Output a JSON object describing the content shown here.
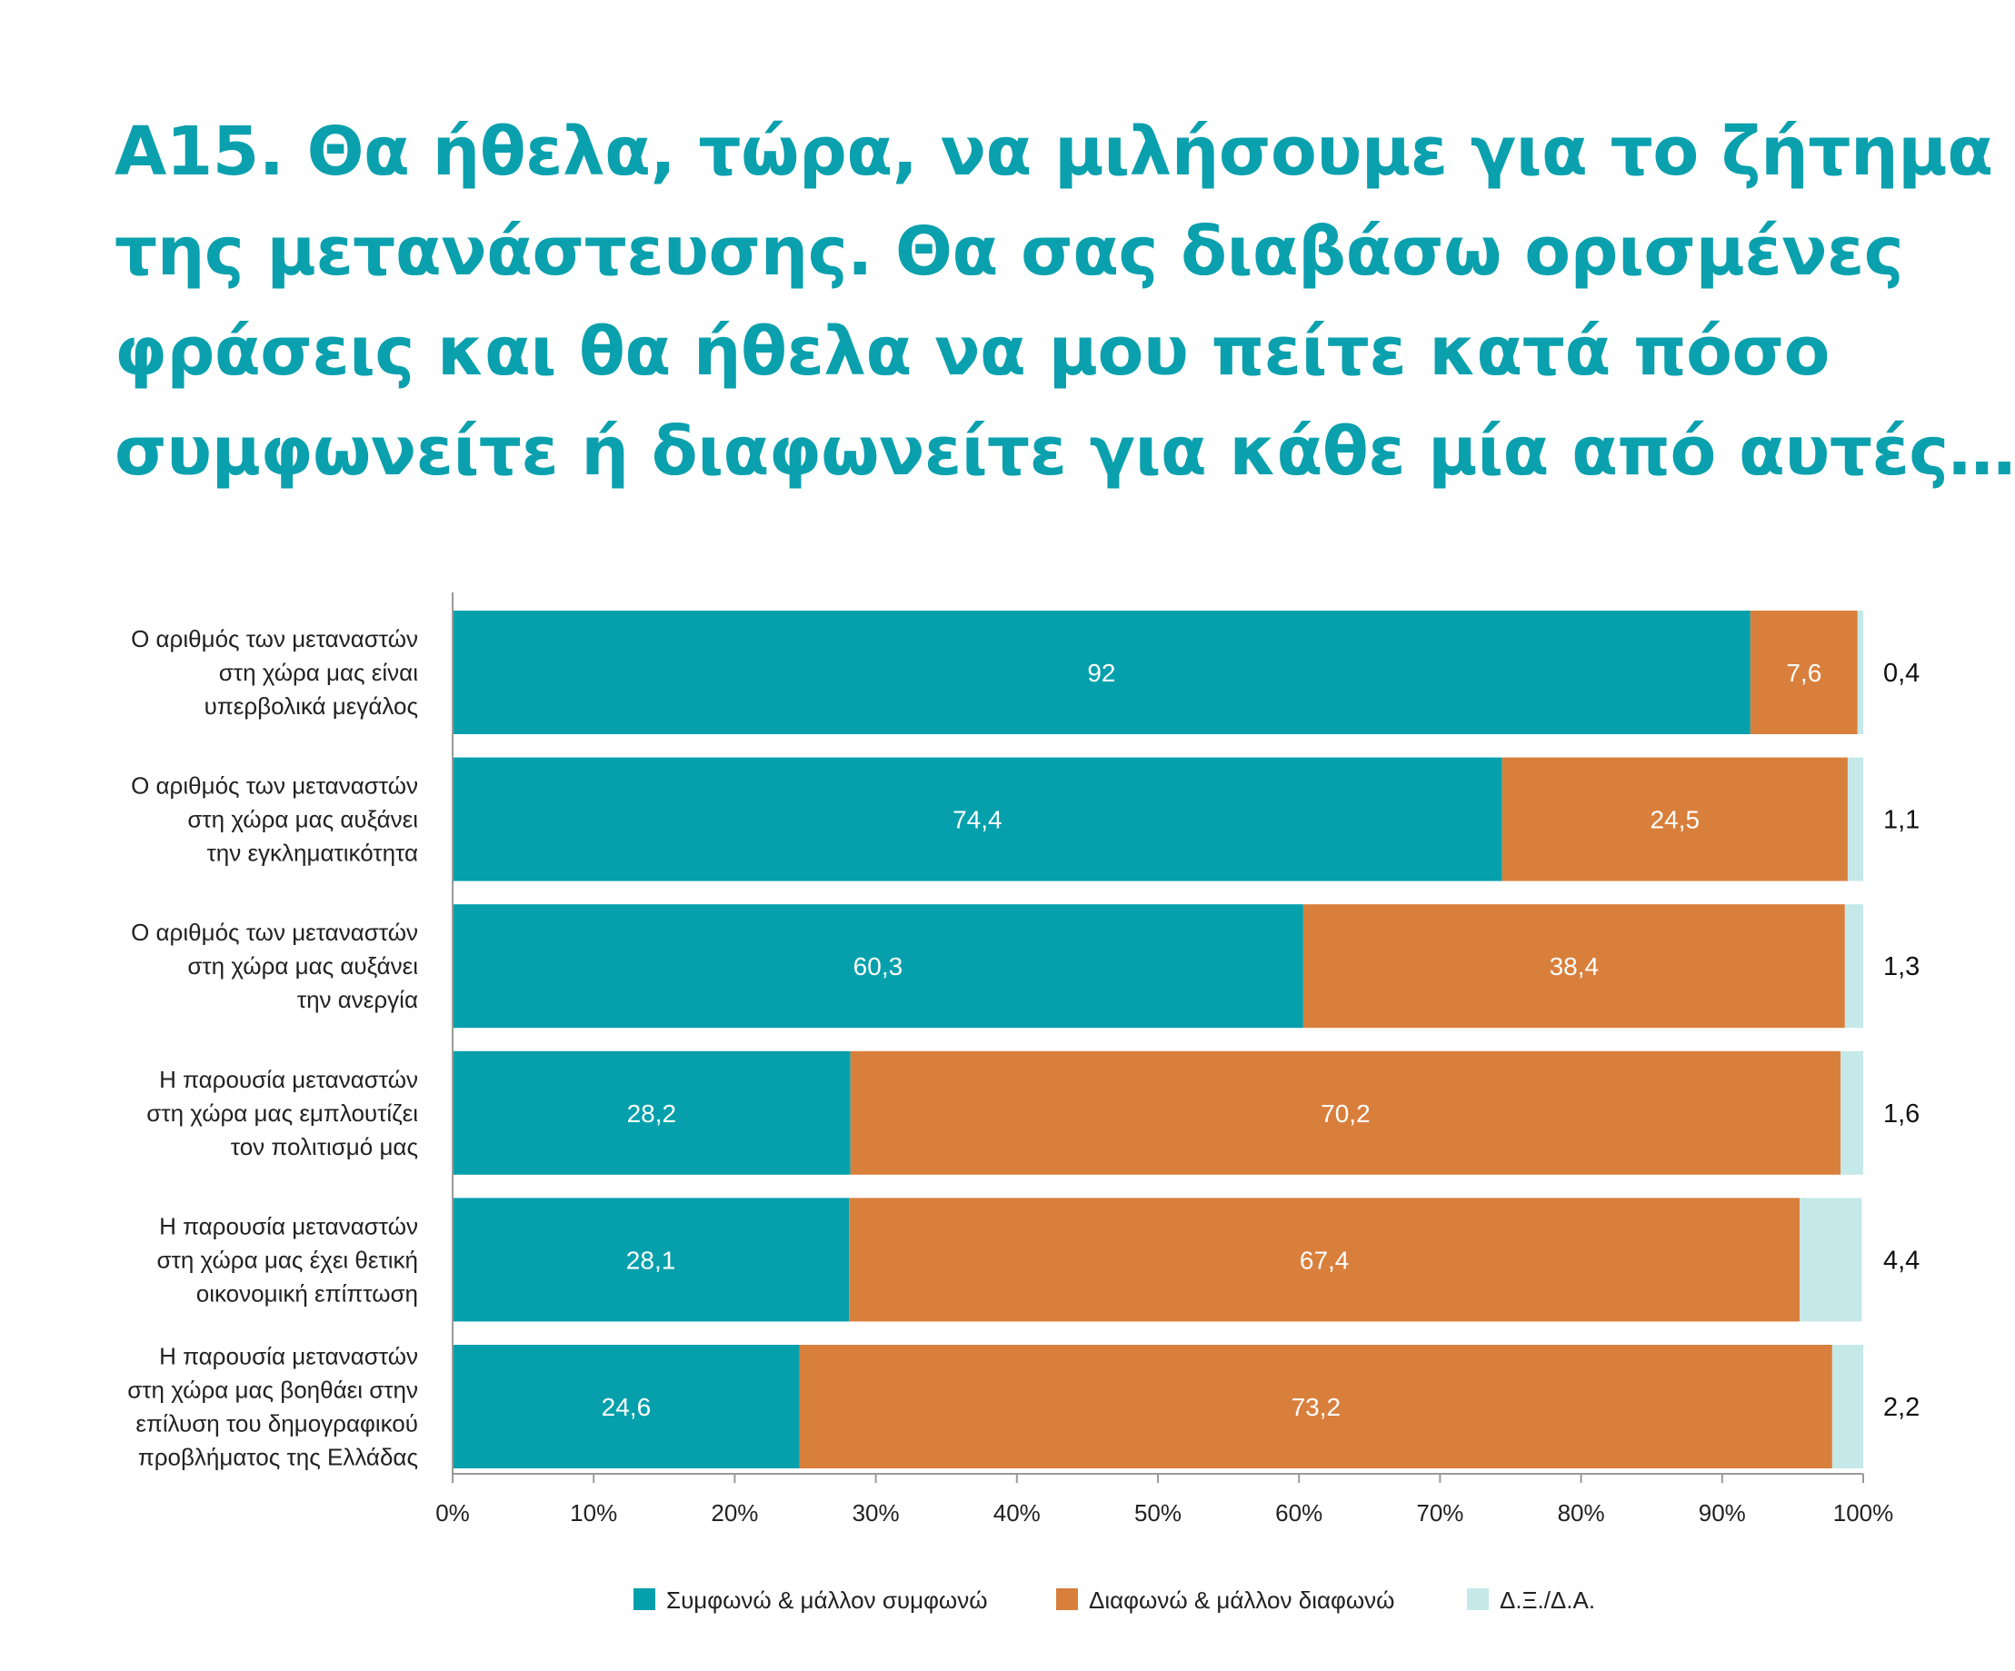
{
  "title_lines": [
    "Α15. Θα ήθελα, τώρα, να μιλήσουμε για το ζήτημα",
    "της μετανάστευσης. Θα σας διαβάσω ορισμένες",
    "φράσεις και θα ήθελα να μου πείτε κατά πόσο",
    "συμφωνείτε ή διαφωνείτε για κάθε μία από αυτές…"
  ],
  "chart_data": {
    "type": "bar",
    "orientation": "horizontal",
    "stacked": true,
    "categories": [
      [
        "Ο αριθμός των μεταναστών",
        "στη χώρα μας είναι",
        "υπερβολικά μεγάλος"
      ],
      [
        "Ο αριθμός των μεταναστών",
        "στη χώρα μας αυξάνει",
        "την εγκληματικότητα"
      ],
      [
        "Ο αριθμός των μεταναστών",
        "στη χώρα μας αυξάνει",
        "την ανεργία"
      ],
      [
        "Η παρουσία μεταναστών",
        "στη χώρα μας εμπλουτίζει",
        "τον πολιτισμό μας"
      ],
      [
        "Η παρουσία μεταναστών",
        "στη χώρα μας έχει θετική",
        "οικονομική επίπτωση"
      ],
      [
        "Η παρουσία μεταναστών",
        "στη χώρα μας βοηθάει στην",
        "επίλυση του δημογραφικού",
        "προβλήματος της Ελλάδας"
      ]
    ],
    "series": [
      {
        "name": "Συμφωνώ & μάλλον συμφωνώ",
        "color": "#05a0ac",
        "values": [
          92,
          74.4,
          60.3,
          28.2,
          28.1,
          24.6
        ],
        "labels": [
          "92",
          "74,4",
          "60,3",
          "28,2",
          "28,1",
          "24,6"
        ]
      },
      {
        "name": "Διαφωνώ & μάλλον διαφωνώ",
        "color": "#d97f3c",
        "values": [
          7.6,
          24.5,
          38.4,
          70.2,
          67.4,
          73.2
        ],
        "labels": [
          "7,6",
          "24,5",
          "38,4",
          "70,2",
          "67,4",
          "73,2"
        ]
      },
      {
        "name": "Δ.Ξ./Δ.Α.",
        "color": "#c5e9e9",
        "values": [
          0.4,
          1.1,
          1.3,
          1.6,
          4.4,
          2.2
        ],
        "labels": [
          "0,4",
          "1,1",
          "1,3",
          "1,6",
          "4,4",
          "2,2"
        ]
      }
    ],
    "xlim": [
      0,
      100
    ],
    "xticks": [
      "0%",
      "10%",
      "20%",
      "30%",
      "40%",
      "50%",
      "60%",
      "70%",
      "80%",
      "90%",
      "100%"
    ],
    "legend_position": "bottom",
    "grid": false
  }
}
